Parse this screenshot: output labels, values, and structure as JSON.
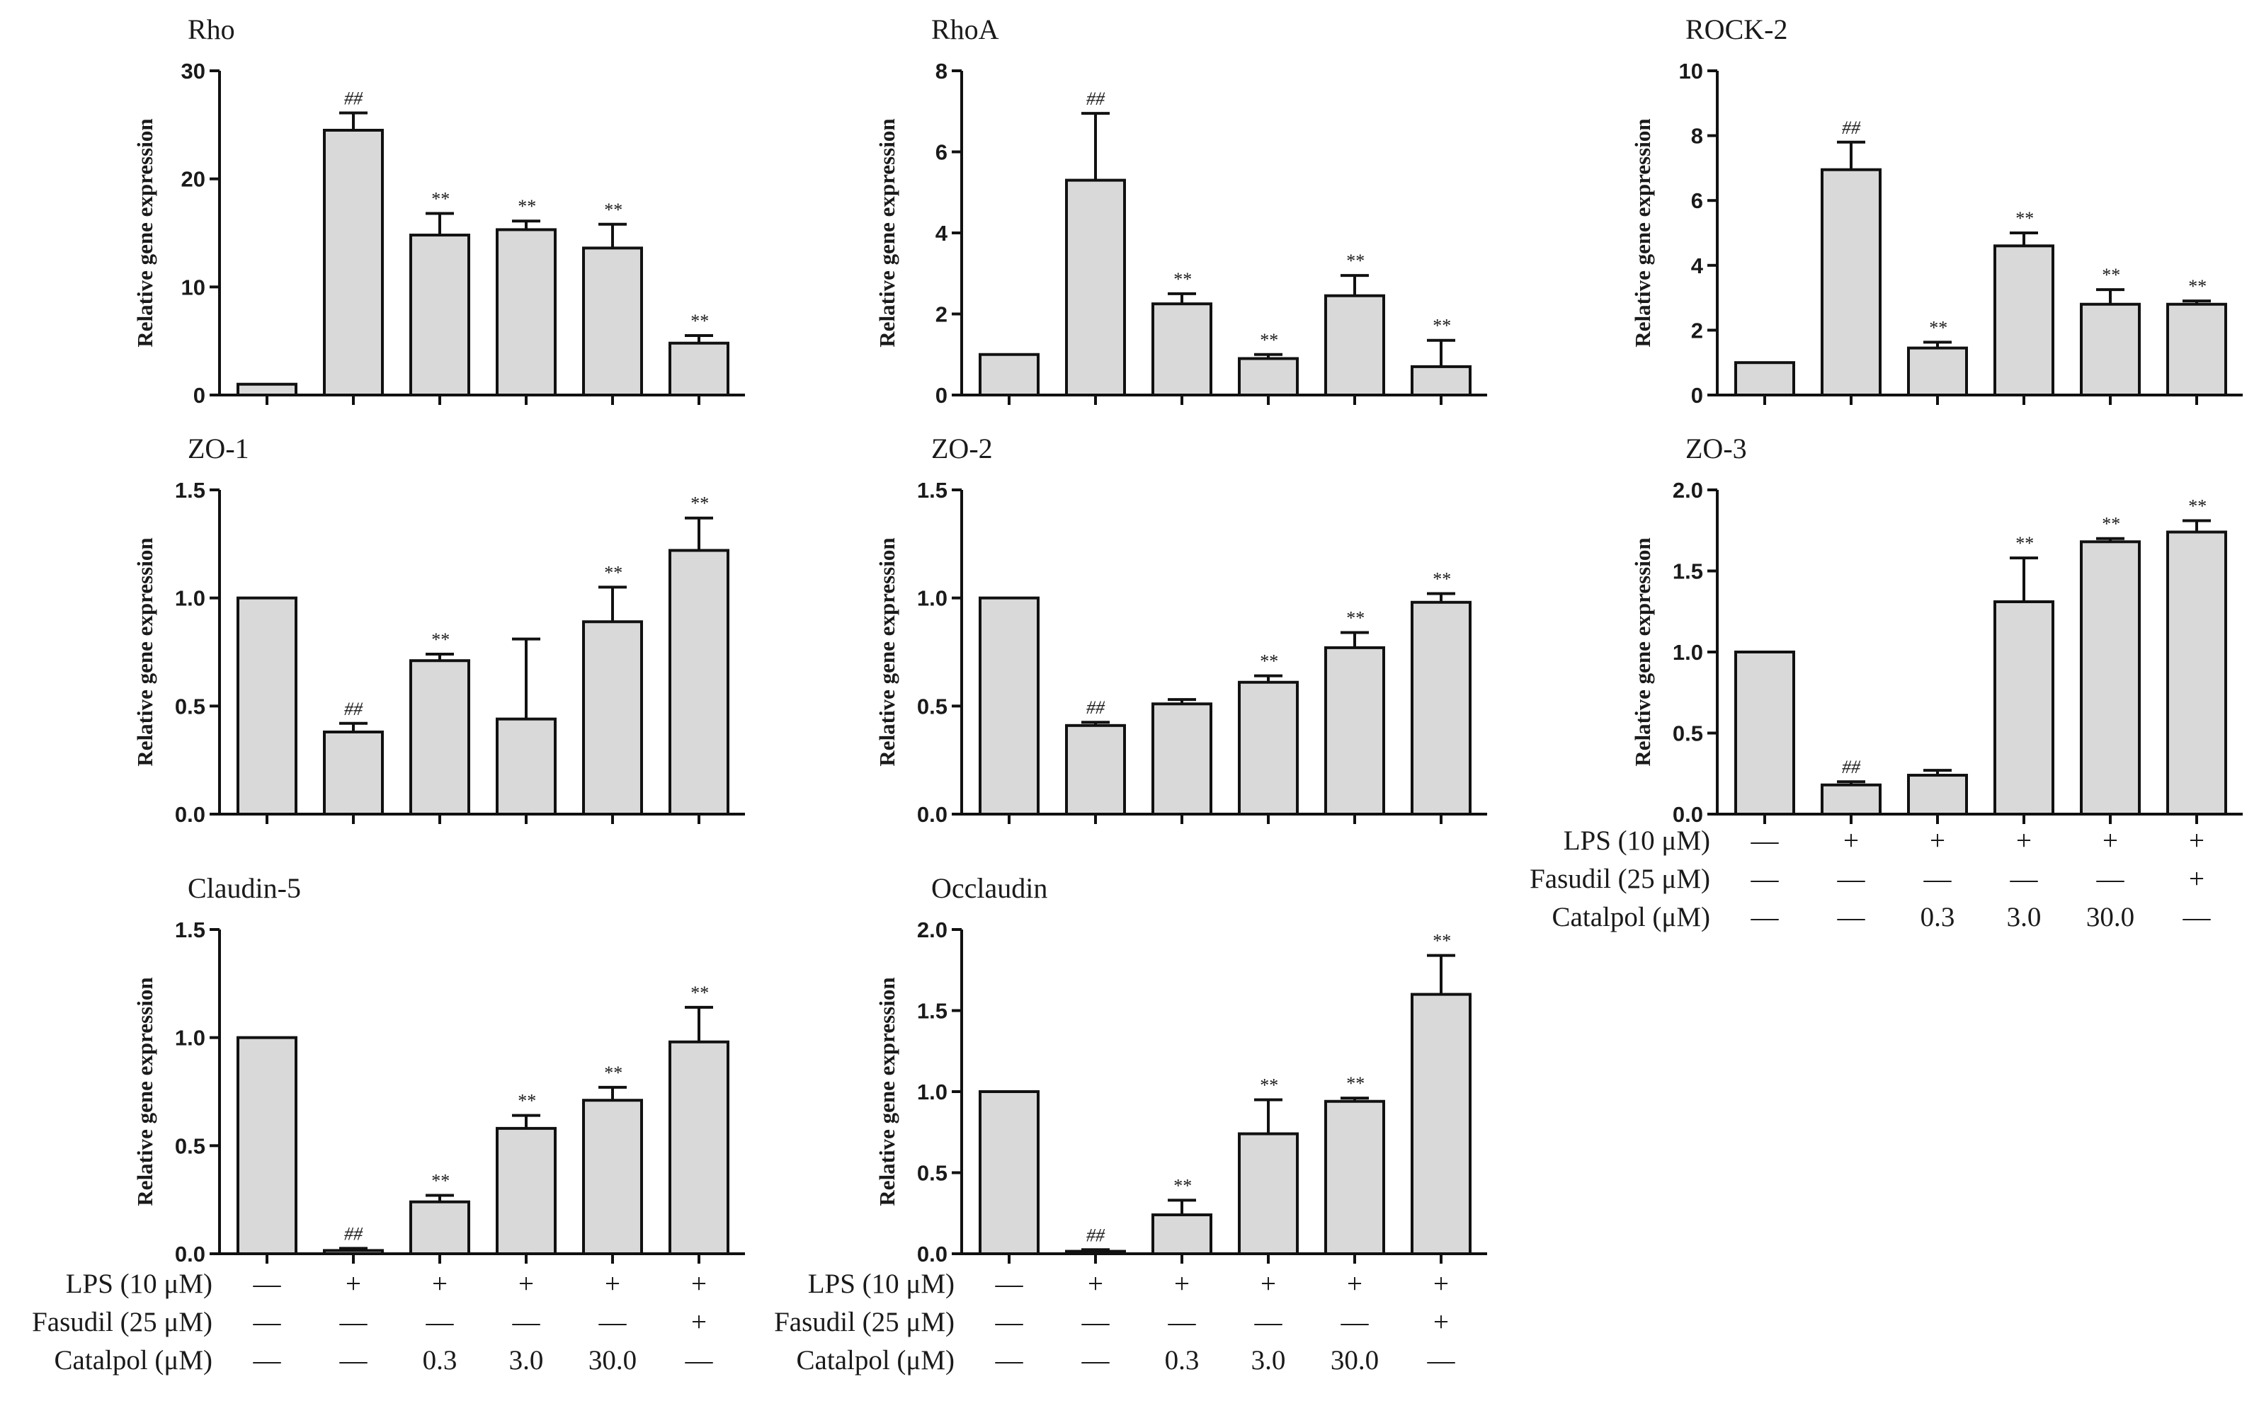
{
  "figure": {
    "ylabel": "Relative gene expression",
    "condition_rows": [
      {
        "label": "LPS (10 μM)",
        "values": [
          "—",
          "+",
          "+",
          "+",
          "+",
          "+"
        ]
      },
      {
        "label": "Fasudil (25 μM)",
        "values": [
          "—",
          "—",
          "—",
          "—",
          "—",
          "+"
        ]
      },
      {
        "label": "Catalpol (μM)",
        "values": [
          "—",
          "—",
          "0.3",
          "3.0",
          "30.0",
          "—"
        ]
      }
    ]
  },
  "chart_data": [
    {
      "type": "bar",
      "title": "Rho",
      "ylabel": "Relative gene expression",
      "ylim": [
        0,
        30
      ],
      "yticks": [
        "0",
        "10",
        "20",
        "30"
      ],
      "values": [
        1.0,
        24.5,
        14.8,
        15.3,
        13.6,
        4.8
      ],
      "errors": [
        0,
        1.6,
        2.0,
        0.8,
        2.2,
        0.7
      ],
      "annotations": [
        "",
        "##",
        "**",
        "**",
        "**",
        "**"
      ]
    },
    {
      "type": "bar",
      "title": "RhoA",
      "ylabel": "Relative gene expression",
      "ylim": [
        0,
        8
      ],
      "yticks": [
        "0",
        "2",
        "4",
        "6",
        "8"
      ],
      "values": [
        1.0,
        5.3,
        2.25,
        0.9,
        2.45,
        0.7
      ],
      "errors": [
        0,
        1.65,
        0.25,
        0.1,
        0.5,
        0.65
      ],
      "annotations": [
        "",
        "##",
        "**",
        "**",
        "**",
        "**"
      ]
    },
    {
      "type": "bar",
      "title": "ROCK-2",
      "ylabel": "Relative gene expression",
      "ylim": [
        0,
        10
      ],
      "yticks": [
        "0",
        "2",
        "4",
        "6",
        "8",
        "10"
      ],
      "values": [
        1.0,
        6.95,
        1.45,
        4.6,
        2.8,
        2.8
      ],
      "errors": [
        0,
        0.85,
        0.18,
        0.4,
        0.45,
        0.1
      ],
      "annotations": [
        "",
        "##",
        "**",
        "**",
        "**",
        "**"
      ]
    },
    {
      "type": "bar",
      "title": "ZO-1",
      "ylabel": "Relative gene expression",
      "ylim": [
        0,
        1.5
      ],
      "yticks": [
        "0.0",
        "0.5",
        "1.0",
        "1.5"
      ],
      "values": [
        1.0,
        0.38,
        0.71,
        0.44,
        0.89,
        1.22
      ],
      "errors": [
        0,
        0.04,
        0.03,
        0.37,
        0.16,
        0.15
      ],
      "annotations": [
        "",
        "##",
        "**",
        "",
        "**",
        "**"
      ]
    },
    {
      "type": "bar",
      "title": "ZO-2",
      "ylabel": "Relative gene expression",
      "ylim": [
        0,
        1.5
      ],
      "yticks": [
        "0.0",
        "0.5",
        "1.0",
        "1.5"
      ],
      "values": [
        1.0,
        0.41,
        0.51,
        0.61,
        0.77,
        0.98
      ],
      "errors": [
        0,
        0.015,
        0.02,
        0.03,
        0.07,
        0.04
      ],
      "annotations": [
        "",
        "##",
        "",
        "**",
        "**",
        "**"
      ]
    },
    {
      "type": "bar",
      "title": "ZO-3",
      "ylabel": "Relative gene expression",
      "ylim": [
        0,
        2.0
      ],
      "yticks": [
        "0.0",
        "0.5",
        "1.0",
        "1.5",
        "2.0"
      ],
      "values": [
        1.0,
        0.18,
        0.24,
        1.31,
        1.68,
        1.74
      ],
      "errors": [
        0,
        0.02,
        0.03,
        0.27,
        0.02,
        0.07
      ],
      "annotations": [
        "",
        "##",
        "",
        "**",
        "**",
        "**"
      ]
    },
    {
      "type": "bar",
      "title": "Claudin-5",
      "ylabel": "Relative gene expression",
      "ylim": [
        0,
        1.5
      ],
      "yticks": [
        "0.0",
        "0.5",
        "1.0",
        "1.5"
      ],
      "values": [
        1.0,
        0.015,
        0.24,
        0.58,
        0.71,
        0.98
      ],
      "errors": [
        0,
        0.01,
        0.03,
        0.06,
        0.06,
        0.16
      ],
      "annotations": [
        "",
        "##",
        "**",
        "**",
        "**",
        "**"
      ]
    },
    {
      "type": "bar",
      "title": "Occlaudin",
      "ylabel": "Relative gene expression",
      "ylim": [
        0,
        2.0
      ],
      "yticks": [
        "0.0",
        "0.5",
        "1.0",
        "1.5",
        "2.0"
      ],
      "values": [
        1.0,
        0.015,
        0.24,
        0.74,
        0.94,
        1.6
      ],
      "errors": [
        0,
        0.01,
        0.09,
        0.21,
        0.02,
        0.24
      ],
      "annotations": [
        "",
        "##",
        "**",
        "**",
        "**",
        "**"
      ]
    }
  ]
}
